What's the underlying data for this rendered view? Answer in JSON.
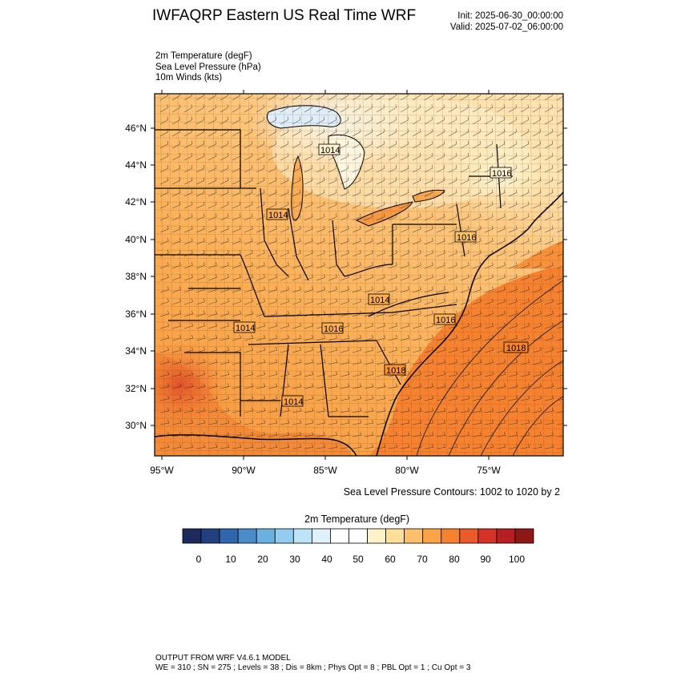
{
  "header": {
    "title": "IWFAQRP Eastern US Real Time WRF",
    "init": "Init: 2025-06-30_00:00:00",
    "valid": "Valid: 2025-07-02_06:00:00"
  },
  "fields": [
    "2m Temperature   (degF)",
    "Sea Level Pressure   (hPa)",
    "10m Winds   (kts)"
  ],
  "map": {
    "lat_labels": [
      "46°N",
      "44°N",
      "42°N",
      "40°N",
      "38°N",
      "36°N",
      "34°N",
      "32°N",
      "30°N"
    ],
    "lon_labels": [
      "95°W",
      "90°W",
      "85°W",
      "80°W",
      "75°W"
    ],
    "pressure_labels": [
      "1014",
      "1016",
      "1018",
      "1016",
      "1014",
      "1014",
      "1014",
      "1014",
      "1016",
      "1016",
      "1018"
    ],
    "contour_note": "Sea Level Pressure Contours: 1002 to 1020 by 2"
  },
  "colorbar": {
    "title": "2m Temperature  (degF)",
    "labels": [
      "0",
      "10",
      "20",
      "30",
      "40",
      "50",
      "60",
      "70",
      "80",
      "90",
      "100"
    ],
    "colors": [
      "#1c2a5c",
      "#243f80",
      "#2f66ae",
      "#4a8cc9",
      "#6ab0e0",
      "#94ccef",
      "#bde3f6",
      "#dff1fa",
      "#ffffff",
      "#ffffff",
      "#fff2c8",
      "#ffdf9a",
      "#fdc06a",
      "#fba347",
      "#f6812f",
      "#ea5a2a",
      "#d43327",
      "#b51f22",
      "#8e1818"
    ]
  },
  "footer": {
    "line1": "OUTPUT FROM WRF V4.6.1 MODEL",
    "line2": "WE = 310 ; SN = 275 ; Levels = 38 ; Dis = 8km ; Phys Opt = 8 ; PBL Opt = 1 ; Cu Opt = 3"
  }
}
